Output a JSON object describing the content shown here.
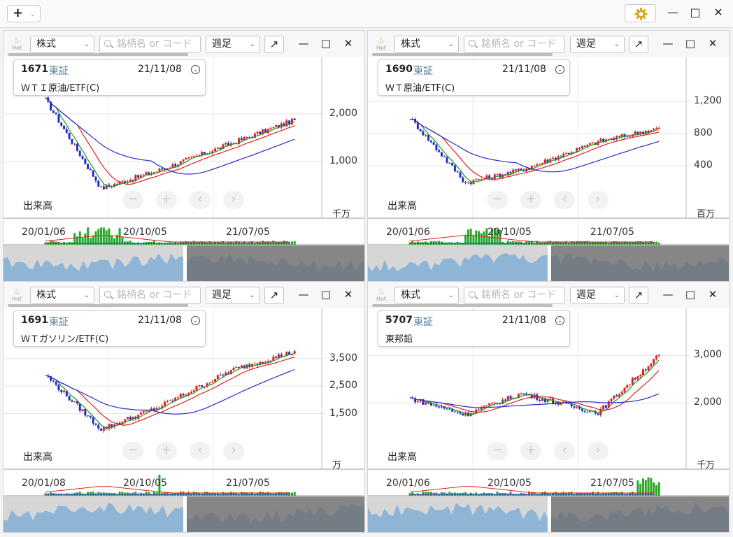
{
  "app": {
    "add_label": "+",
    "add_caret": "⌄",
    "controls": {
      "minimize": "—",
      "maximize": "□",
      "close": "✕"
    }
  },
  "toolbar_common": {
    "hot_label": "Hot",
    "market_select": "株式",
    "search_placeholder": "銘柄名 or コード",
    "period_select": "週足",
    "expand": "↗"
  },
  "panels": [
    {
      "code": "1671",
      "exchange": "東証",
      "date": "21/11/08",
      "name": "ＷＴＩ原油/ETF(C)",
      "y_ticks": [
        "2,000",
        "1,000"
      ],
      "volume_label": "出来高",
      "volume_unit": "千万",
      "x_ticks": [
        "20/01/06",
        "20/10/05",
        "21/07/05"
      ]
    },
    {
      "code": "1690",
      "exchange": "東証",
      "date": "21/11/08",
      "name": "ＷＴ原油/ETF(C)",
      "y_ticks": [
        "1,200",
        "800",
        "400"
      ],
      "volume_label": "出来高",
      "volume_unit": "百万",
      "x_ticks": [
        "20/01/06",
        "20/10/05",
        "21/07/05"
      ]
    },
    {
      "code": "1691",
      "exchange": "東証",
      "date": "21/11/08",
      "name": "ＷＴガソリン/ETF(C)",
      "y_ticks": [
        "3,500",
        "2,500",
        "1,500"
      ],
      "volume_label": "出来高",
      "volume_unit": "万",
      "x_ticks": [
        "20/01/08",
        "20/10/05",
        "21/07/05"
      ]
    },
    {
      "code": "5707",
      "exchange": "東証",
      "date": "21/11/08",
      "name": "東邦鉛",
      "y_ticks": [
        "3,000",
        "2,000"
      ],
      "volume_label": "出来高",
      "volume_unit": "千万",
      "x_ticks": [
        "20/01/06",
        "20/10/05",
        "21/07/05"
      ]
    }
  ],
  "nav_buttons": {
    "zoom_out": "−",
    "zoom_in": "+",
    "prev": "‹",
    "next": "›"
  },
  "colors": {
    "up": "#e02020",
    "down": "#2030c0",
    "ma_short": "#1a9a1a",
    "ma_mid": "#e02020",
    "ma_long": "#2a2ad0",
    "volume": "#2aa82a",
    "overview_fill": "#8fb5d6",
    "overview_dark": "#6b6b6b"
  },
  "chart_data": [
    {
      "type": "candlestick",
      "title": "1671 ＷＴＩ原油/ETF(C)",
      "x": [
        "20/01/06",
        "20/10/05",
        "21/07/05",
        "21/11/08"
      ],
      "close": [
        2300,
        800,
        1400,
        1870
      ],
      "ylim": [
        400,
        2600
      ]
    },
    {
      "type": "candlestick",
      "title": "1690 ＷＴ原油/ETF(C)",
      "x": [
        "20/01/06",
        "20/10/05",
        "21/07/05",
        "21/11/08"
      ],
      "close": [
        1000,
        350,
        700,
        870
      ],
      "ylim": [
        100,
        1400
      ]
    },
    {
      "type": "candlestick",
      "title": "1691 ＷＴガソリン/ETF(C)",
      "x": [
        "20/01/08",
        "20/10/05",
        "21/07/05",
        "21/11/08"
      ],
      "close": [
        2900,
        1700,
        3100,
        3750
      ],
      "ylim": [
        500,
        4300
      ]
    },
    {
      "type": "candlestick",
      "title": "5707 東邦鉛",
      "x": [
        "20/01/06",
        "20/10/05",
        "21/07/05",
        "21/11/08"
      ],
      "close": [
        2100,
        2200,
        1800,
        3000
      ],
      "ylim": [
        1200,
        3400
      ]
    }
  ]
}
